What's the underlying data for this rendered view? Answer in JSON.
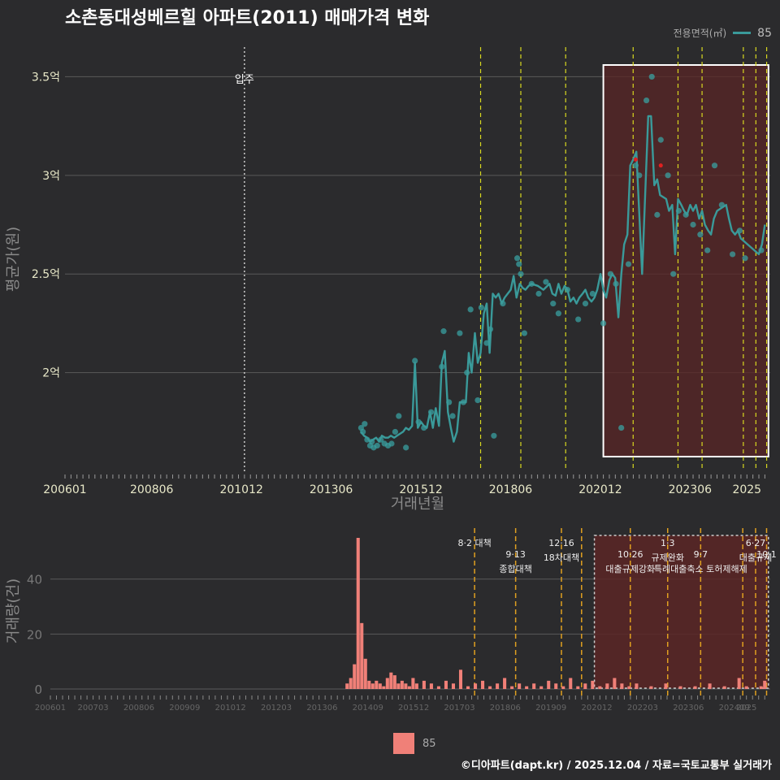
{
  "title": "소촌동대성베르힐 아파트(2011) 매매가격 변화",
  "footer": "©디아파트(dapt.kr) / 2025.12.04 / 자료=국토교통부 실거래가",
  "legend": {
    "label": "전용면적(㎡)",
    "series": "85",
    "bottom_series": "85"
  },
  "colors": {
    "line": "#3a9a9a",
    "point": "#3aa0a0",
    "bar": "#f08078",
    "highlight": "#5a2626",
    "vline": "#d8d820",
    "vline2": "#e0a020"
  },
  "chart_data": [
    {
      "type": "line",
      "title": "소촌동대성베르힐 아파트(2011) 매매가격 변화",
      "xlabel": "거래년월",
      "ylabel": "평균가(원)",
      "ylim": [
        1.5,
        3.65
      ],
      "xlim": [
        2006.0,
        2025.65
      ],
      "x_ticks": [
        "200601",
        "200806",
        "201012",
        "201306",
        "201512",
        "201806",
        "202012",
        "202306",
        "2025"
      ],
      "y_ticks": [
        2.0,
        2.5,
        3.0,
        3.5
      ],
      "y_tick_labels": [
        "2억",
        "2.5억",
        "3억",
        "3.5억"
      ],
      "annotation": {
        "label": "입주",
        "x": 2011.0
      },
      "highlight_range": [
        2021.0,
        2025.6
      ],
      "policy_lines": [
        2017.58,
        2018.7,
        2019.95,
        2021.83,
        2023.08,
        2023.75,
        2024.9,
        2025.25,
        2025.55
      ],
      "series": [
        {
          "name": "85",
          "x": [
            2014.25,
            2014.33,
            2014.42,
            2014.5,
            2014.58,
            2014.67,
            2014.75,
            2014.83,
            2014.92,
            2015.0,
            2015.08,
            2015.17,
            2015.25,
            2015.42,
            2015.5,
            2015.58,
            2015.67,
            2015.75,
            2015.83,
            2015.92,
            2016.0,
            2016.08,
            2016.17,
            2016.25,
            2016.33,
            2016.42,
            2016.5,
            2016.58,
            2016.67,
            2016.75,
            2016.83,
            2016.92,
            2017.0,
            2017.08,
            2017.17,
            2017.25,
            2017.33,
            2017.42,
            2017.5,
            2017.58,
            2017.67,
            2017.75,
            2017.83,
            2017.92,
            2018.0,
            2018.08,
            2018.17,
            2018.25,
            2018.42,
            2018.5,
            2018.58,
            2018.67,
            2018.75,
            2018.83,
            2018.92,
            2019.0,
            2019.17,
            2019.33,
            2019.5,
            2019.58,
            2019.67,
            2019.75,
            2019.83,
            2019.92,
            2020.0,
            2020.08,
            2020.17,
            2020.25,
            2020.33,
            2020.42,
            2020.5,
            2020.58,
            2020.67,
            2020.75,
            2020.83,
            2020.92,
            2021.0,
            2021.08,
            2021.17,
            2021.25,
            2021.33,
            2021.42,
            2021.5,
            2021.58,
            2021.67,
            2021.75,
            2021.83,
            2021.92,
            2022.08,
            2022.25,
            2022.33,
            2022.42,
            2022.5,
            2022.58,
            2022.75,
            2022.83,
            2022.92,
            2023.0,
            2023.08,
            2023.17,
            2023.25,
            2023.33,
            2023.42,
            2023.5,
            2023.58,
            2023.67,
            2023.75,
            2023.83,
            2023.92,
            2024.0,
            2024.08,
            2024.17,
            2024.25,
            2024.42,
            2024.5,
            2024.58,
            2024.67,
            2024.75,
            2024.83,
            2025.33,
            2025.42,
            2025.5
          ],
          "values": [
            1.7,
            1.68,
            1.67,
            1.65,
            1.66,
            1.67,
            1.65,
            1.68,
            1.67,
            1.67,
            1.68,
            1.67,
            1.68,
            1.7,
            1.72,
            1.71,
            1.73,
            2.05,
            1.72,
            1.75,
            1.73,
            1.72,
            1.8,
            1.72,
            1.82,
            1.73,
            2.05,
            2.11,
            1.8,
            1.72,
            1.65,
            1.7,
            1.85,
            1.85,
            1.85,
            2.1,
            2.0,
            2.2,
            2.05,
            2.1,
            2.3,
            2.35,
            2.1,
            2.4,
            2.38,
            2.4,
            2.35,
            2.38,
            2.42,
            2.49,
            2.38,
            2.45,
            2.43,
            2.42,
            2.44,
            2.45,
            2.44,
            2.42,
            2.45,
            2.4,
            2.39,
            2.45,
            2.4,
            2.44,
            2.42,
            2.36,
            2.38,
            2.35,
            2.38,
            2.4,
            2.42,
            2.38,
            2.36,
            2.38,
            2.42,
            2.5,
            2.42,
            2.38,
            2.47,
            2.5,
            2.48,
            2.28,
            2.5,
            2.65,
            2.7,
            3.05,
            3.08,
            3.12,
            2.5,
            3.3,
            3.3,
            2.95,
            2.98,
            2.9,
            2.88,
            2.82,
            2.85,
            2.6,
            2.88,
            2.85,
            2.82,
            2.8,
            2.85,
            2.82,
            2.85,
            2.78,
            2.82,
            2.75,
            2.72,
            2.7,
            2.78,
            2.82,
            2.83,
            2.85,
            2.78,
            2.72,
            2.7,
            2.72,
            2.68,
            2.6,
            2.65,
            2.75
          ]
        }
      ],
      "scatter": {
        "x": [
          2014.25,
          2014.3,
          2014.35,
          2014.42,
          2014.5,
          2014.55,
          2014.6,
          2014.7,
          2014.8,
          2014.9,
          2015.0,
          2015.1,
          2015.2,
          2015.3,
          2015.5,
          2015.75,
          2015.85,
          2016.0,
          2016.2,
          2016.5,
          2016.55,
          2016.7,
          2016.8,
          2017.0,
          2017.1,
          2017.2,
          2017.3,
          2017.5,
          2017.6,
          2017.75,
          2017.85,
          2017.95,
          2018.2,
          2018.6,
          2018.65,
          2018.7,
          2018.8,
          2019.0,
          2019.2,
          2019.4,
          2019.6,
          2019.75,
          2020.0,
          2020.3,
          2020.5,
          2020.7,
          2021.0,
          2021.2,
          2021.35,
          2021.5,
          2021.7,
          2021.9,
          2022.0,
          2022.2,
          2022.35,
          2022.5,
          2022.6,
          2022.8,
          2022.95,
          2023.1,
          2023.3,
          2023.5,
          2023.7,
          2023.9,
          2024.1,
          2024.3,
          2024.6,
          2024.8,
          2024.95,
          2025.4
        ],
        "values": [
          1.72,
          1.7,
          1.74,
          1.66,
          1.63,
          1.65,
          1.62,
          1.63,
          1.66,
          1.64,
          1.63,
          1.64,
          1.7,
          1.78,
          1.62,
          2.06,
          1.75,
          1.72,
          1.8,
          2.03,
          2.21,
          1.85,
          1.78,
          2.2,
          1.85,
          2.0,
          2.32,
          1.86,
          2.33,
          2.15,
          2.22,
          1.68,
          2.35,
          2.58,
          2.55,
          2.5,
          2.2,
          2.45,
          2.4,
          2.46,
          2.35,
          2.3,
          2.42,
          2.27,
          2.35,
          2.4,
          2.25,
          2.5,
          2.45,
          1.72,
          2.55,
          3.05,
          3.0,
          3.38,
          3.5,
          2.8,
          3.18,
          3.0,
          2.5,
          2.82,
          2.8,
          2.75,
          2.7,
          2.62,
          3.05,
          2.85,
          2.6,
          2.72,
          2.58,
          2.62
        ]
      },
      "red_marks": {
        "x": [
          2021.9,
          2022.6
        ],
        "values": [
          3.08,
          3.05
        ]
      }
    },
    {
      "type": "bar",
      "xlabel": "",
      "ylabel": "거래량(건)",
      "ylim": [
        0,
        55
      ],
      "y_ticks": [
        0,
        20,
        40
      ],
      "x_ticks": [
        "200601",
        "200703",
        "200806",
        "200909",
        "201012",
        "201203",
        "201306",
        "201409",
        "201512",
        "201703",
        "201806",
        "201909",
        "202012",
        "202203",
        "202306",
        "202409",
        "2025"
      ],
      "highlight_range": [
        2020.85,
        2025.6
      ],
      "policy_lines": [
        2017.58,
        2018.7,
        2019.95,
        2020.5,
        2021.83,
        2022.85,
        2023.75,
        2024.9,
        2025.25,
        2025.55
      ],
      "annotations": [
        {
          "x": 2017.58,
          "line1": "8·2 대책",
          "line2": ""
        },
        {
          "x": 2018.7,
          "line1": "9·13",
          "line2": "종합대책"
        },
        {
          "x": 2019.95,
          "line1": "12·16",
          "line2": "18차대책"
        },
        {
          "x": 2021.83,
          "line1": "10·26",
          "line2": "대출규제강화"
        },
        {
          "x": 2022.85,
          "line1": "1·3",
          "line2": "규제완화"
        },
        {
          "x": 2023.75,
          "line1": "9·7",
          "line2": "특례대출축소 토허제해제"
        },
        {
          "x": 2025.25,
          "line1": "6·27",
          "line2": "대출규제"
        },
        {
          "x": 2025.55,
          "line1": "10·1",
          "line2": ""
        }
      ],
      "series": [
        {
          "name": "85",
          "x": [
            2014.1,
            2014.2,
            2014.3,
            2014.4,
            2014.5,
            2014.6,
            2014.7,
            2014.8,
            2014.9,
            2015.0,
            2015.1,
            2015.2,
            2015.3,
            2015.4,
            2015.5,
            2015.6,
            2015.7,
            2015.8,
            2015.9,
            2016.0,
            2016.2,
            2016.4,
            2016.6,
            2016.8,
            2017.0,
            2017.2,
            2017.4,
            2017.6,
            2017.8,
            2018.0,
            2018.2,
            2018.4,
            2018.6,
            2018.8,
            2019.0,
            2019.2,
            2019.4,
            2019.6,
            2019.8,
            2020.0,
            2020.2,
            2020.4,
            2020.6,
            2020.8,
            2021.0,
            2021.2,
            2021.4,
            2021.6,
            2021.8,
            2022.0,
            2022.4,
            2022.8,
            2023.2,
            2023.6,
            2024.0,
            2024.4,
            2024.8,
            2025.0,
            2025.4,
            2025.5
          ],
          "values": [
            2,
            4,
            9,
            55,
            24,
            11,
            3,
            2,
            3,
            2,
            1,
            4,
            6,
            5,
            2,
            3,
            2,
            1,
            4,
            2,
            3,
            2,
            1,
            3,
            2,
            7,
            1,
            2,
            3,
            1,
            2,
            4,
            1,
            2,
            1,
            2,
            1,
            3,
            2,
            1,
            4,
            1,
            2,
            3,
            1,
            2,
            4,
            2,
            1,
            2,
            1,
            2,
            1,
            1,
            2,
            1,
            4,
            1,
            1,
            3
          ]
        }
      ]
    }
  ]
}
